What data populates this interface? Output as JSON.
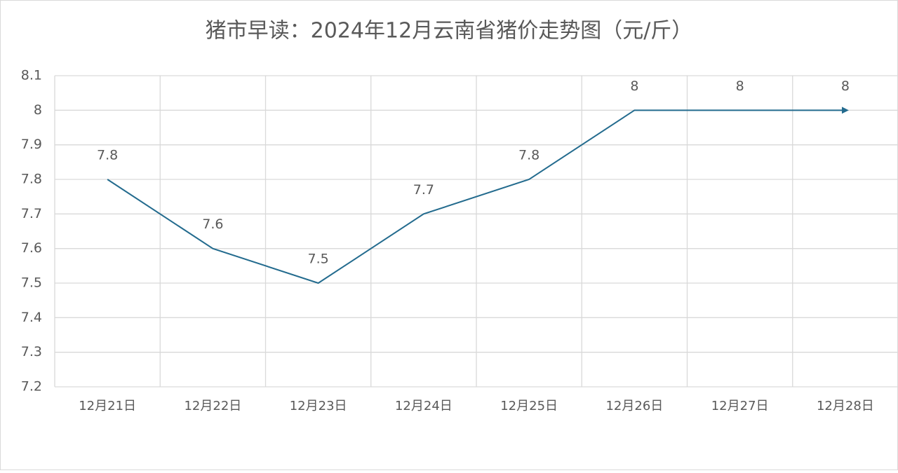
{
  "chart_data": {
    "type": "line",
    "title": "猪市早读：2024年12月云南省猪价走势图（元/斤）",
    "categories": [
      "12月21日",
      "12月22日",
      "12月23日",
      "12月24日",
      "12月25日",
      "12月26日",
      "12月27日",
      "12月28日"
    ],
    "values": [
      7.8,
      7.6,
      7.5,
      7.7,
      7.8,
      8,
      8,
      8
    ],
    "color": "#236b8e",
    "ylim": [
      7.2,
      8.1
    ],
    "yticks": [
      7.2,
      7.3,
      7.4,
      7.5,
      7.6,
      7.7,
      7.8,
      7.9,
      8,
      8.1
    ],
    "grid": true
  }
}
